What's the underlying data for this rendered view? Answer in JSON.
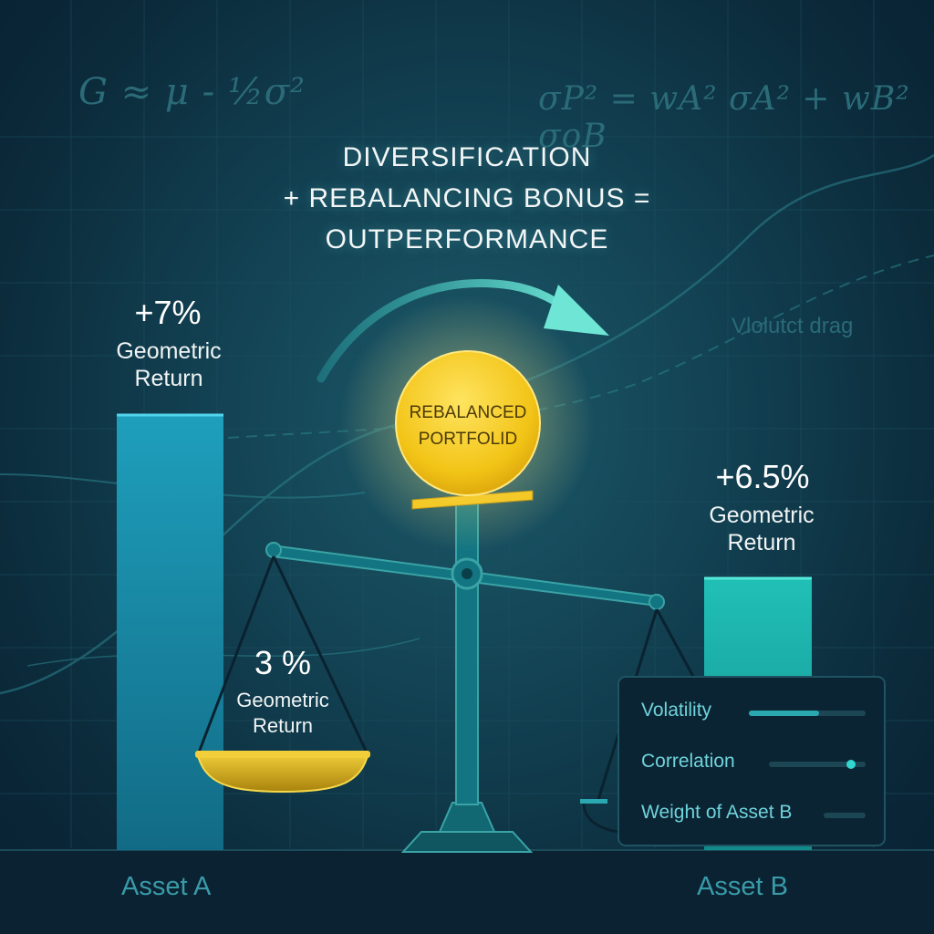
{
  "formulas": {
    "left": "G ≈ μ - ½σ²",
    "right": "σP² = wA² σA² + wB² σoB"
  },
  "headline": [
    "DIVERSIFICATION",
    "+ REBALANCING BONUS =",
    "OUTPERFORMANCE"
  ],
  "asset_a": {
    "value": "+7%",
    "label_line1": "Geometric",
    "label_line2": "Return",
    "name": "Asset A"
  },
  "asset_b": {
    "value": "+6.5%",
    "label_line1": "Geometric",
    "label_line2": "Return",
    "name": "Asset B"
  },
  "left_pan": {
    "value": "3 %",
    "label_line1": "Geometric",
    "label_line2": "Return"
  },
  "coin": {
    "line1": "REBALANCED",
    "line2": "PORTFOLID"
  },
  "faint_note": "Vlolutct drag",
  "panel": {
    "rows": [
      {
        "label": "Volatility",
        "level": 0.6,
        "marker": "bar"
      },
      {
        "label": "Correlation",
        "level": 0.85,
        "marker": "dot"
      },
      {
        "label": "Weight of Asset B",
        "level": 0,
        "marker": "none"
      }
    ]
  },
  "colors": {
    "accent": "#2aa7b1",
    "coin": "#f2c417",
    "bar_a": "#1a93b0",
    "bar_b": "#1bb3ad"
  }
}
